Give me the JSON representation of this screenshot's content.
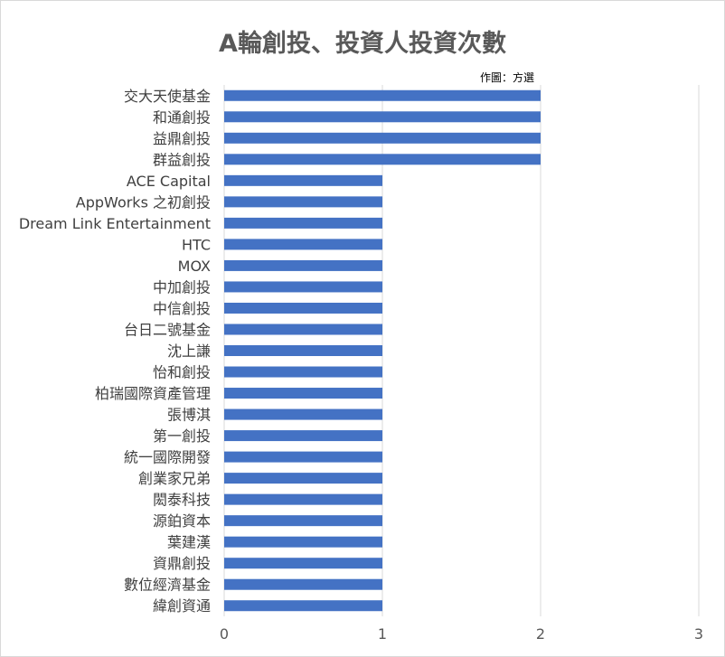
{
  "chart_data": {
    "type": "bar",
    "orientation": "horizontal",
    "title": "A輪創投、投資人投資次數",
    "credit": "作圖：方選",
    "categories": [
      "交大天使基金",
      "和通創投",
      "益鼎創投",
      "群益創投",
      "ACE Capital",
      "AppWorks 之初創投",
      "Dream Link Entertainment",
      "HTC",
      "MOX",
      "中加創投",
      "中信創投",
      "台日二號基金",
      "沈上謙",
      "怡和創投",
      "柏瑞國際資產管理",
      "張博淇",
      "第一創投",
      "統一國際開發",
      "創業家兄弟",
      "閎泰科技",
      "源鉑資本",
      "葉建漢",
      "資鼎創投",
      "數位經濟基金",
      "緯創資通"
    ],
    "values": [
      2,
      2,
      2,
      2,
      1,
      1,
      1,
      1,
      1,
      1,
      1,
      1,
      1,
      1,
      1,
      1,
      1,
      1,
      1,
      1,
      1,
      1,
      1,
      1,
      1
    ],
    "xlim": [
      0,
      3
    ],
    "xticks": [
      "0",
      "1",
      "2",
      "3"
    ],
    "bar_color": "#4472c4",
    "grid": true,
    "legend": "none"
  }
}
